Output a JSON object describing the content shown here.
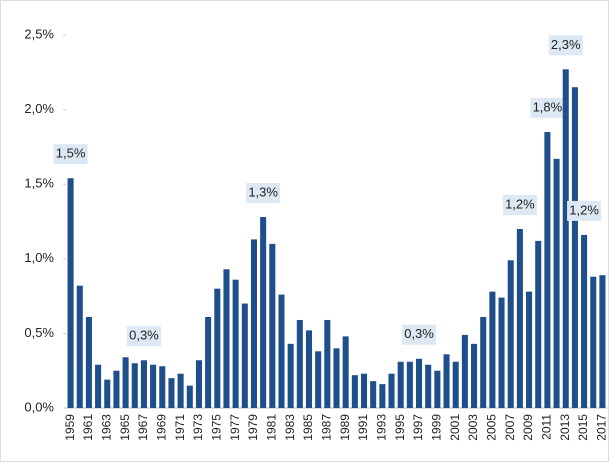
{
  "chart_data": {
    "type": "bar",
    "categories": [
      "1959",
      null,
      "1961",
      null,
      "1963",
      null,
      "1965",
      null,
      "1967",
      null,
      "1969",
      null,
      "1971",
      null,
      "1973",
      null,
      "1975",
      null,
      "1977",
      null,
      "1979",
      null,
      "1981",
      null,
      "1983",
      null,
      "1985",
      null,
      "1987",
      null,
      "1989",
      null,
      "1991",
      null,
      "1993",
      null,
      "1995",
      null,
      "1997",
      null,
      "1999",
      null,
      "2001",
      null,
      "2003",
      null,
      "2005",
      null,
      "2007",
      null,
      "2009",
      null,
      "2011",
      null,
      "2013",
      null,
      "2015",
      null,
      "2017"
    ],
    "values": [
      1.54,
      0.82,
      0.61,
      0.29,
      0.19,
      0.25,
      0.34,
      0.3,
      0.32,
      0.29,
      0.28,
      0.2,
      0.23,
      0.15,
      0.32,
      0.61,
      0.8,
      0.93,
      0.86,
      0.7,
      1.13,
      1.28,
      1.1,
      0.76,
      0.43,
      0.59,
      0.52,
      0.38,
      0.59,
      0.4,
      0.48,
      0.22,
      0.23,
      0.18,
      0.16,
      0.23,
      0.31,
      0.31,
      0.33,
      0.29,
      0.25,
      0.36,
      0.31,
      0.49,
      0.43,
      0.61,
      0.78,
      0.74,
      0.99,
      1.2,
      0.78,
      1.12,
      1.85,
      1.67,
      2.27,
      2.15,
      1.16,
      0.88,
      0.89
    ],
    "value_labels": [
      "1,5%",
      null,
      null,
      null,
      null,
      null,
      null,
      null,
      "0,3%",
      null,
      null,
      null,
      null,
      null,
      null,
      null,
      null,
      null,
      null,
      null,
      null,
      "1,3%",
      null,
      null,
      null,
      null,
      null,
      null,
      null,
      null,
      null,
      null,
      null,
      null,
      null,
      null,
      null,
      null,
      "0,3%",
      null,
      null,
      null,
      null,
      null,
      null,
      null,
      null,
      null,
      null,
      "1,2%",
      null,
      null,
      "1,8%",
      null,
      "2,3%",
      null,
      "1,2%",
      null,
      null
    ],
    "color": "#1f4e8c",
    "ylim": [
      0,
      2.5
    ],
    "yticks": [
      {
        "value": 0,
        "label": "0,0%"
      },
      {
        "value": 0.5,
        "label": "0,5%"
      },
      {
        "value": 1,
        "label": "1,0%"
      },
      {
        "value": 1.5,
        "label": "1,5%"
      },
      {
        "value": 2,
        "label": "2,0%"
      },
      {
        "value": 2.5,
        "label": "2,5%"
      }
    ],
    "grid": false
  }
}
